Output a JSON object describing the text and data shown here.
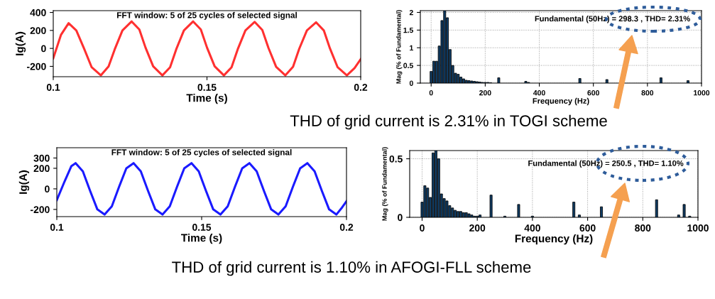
{
  "chart_data": [
    {
      "type": "line",
      "title": "FFT window: 5 of 25 cycles of selected signal",
      "xlabel": "Time (s)",
      "ylabel": "Ig(A)",
      "xlim": [
        0.1,
        0.2
      ],
      "ylim": [
        -315,
        420
      ],
      "xticks": [
        0.1,
        0.15,
        0.2
      ],
      "yticks": [
        -200,
        0,
        200,
        400
      ],
      "grid": false,
      "series": [
        {
          "color": "#ff3030",
          "x": [
            0.1,
            0.1025,
            0.105,
            0.1075,
            0.11,
            0.1125,
            0.1155,
            0.118,
            0.12,
            0.1225,
            0.1255,
            0.128,
            0.13,
            0.1325,
            0.1355,
            0.138,
            0.14,
            0.1425,
            0.1455,
            0.148,
            0.15,
            0.1525,
            0.1555,
            0.158,
            0.16,
            0.1625,
            0.1655,
            0.168,
            0.17,
            0.1725,
            0.1755,
            0.178,
            0.18,
            0.1825,
            0.1855,
            0.188,
            0.19,
            0.1925,
            0.1955,
            0.198,
            0.2
          ],
          "values": [
            -110,
            150,
            280,
            200,
            0,
            -210,
            -300,
            -200,
            -10,
            200,
            300,
            210,
            10,
            -200,
            -300,
            -210,
            -10,
            200,
            300,
            210,
            10,
            -200,
            -300,
            -210,
            -10,
            200,
            295,
            205,
            5,
            -205,
            -300,
            -205,
            -5,
            200,
            290,
            200,
            0,
            -210,
            -300,
            -220,
            -120
          ]
        }
      ]
    },
    {
      "type": "bar",
      "xlabel": "Frequency (Hz)",
      "ylabel": "Mag (% of Fundamental)",
      "xlim": [
        -40,
        1000
      ],
      "ylim": [
        0,
        2.05
      ],
      "xticks": [
        0,
        200,
        400,
        600,
        800,
        1000
      ],
      "yticks": [
        0,
        0.5,
        1,
        1.5,
        2
      ],
      "grid": true,
      "annotations": [
        "Fundamental (50Hz) = 298.3 , THD= 2.31%",
        "THD of grid current is 2.31% in TOGI scheme"
      ],
      "series": [
        {
          "color": "#0f3b63",
          "x": [
            0,
            10,
            20,
            30,
            40,
            50,
            60,
            70,
            80,
            90,
            100,
            110,
            120,
            130,
            140,
            150,
            160,
            170,
            180,
            190,
            200,
            210,
            220,
            250,
            350,
            360,
            550,
            650,
            850,
            950
          ],
          "values": [
            0.33,
            0.62,
            0.62,
            1.05,
            1.77,
            2.05,
            1.85,
            0.95,
            0.5,
            0.28,
            0.25,
            0.17,
            0.12,
            0.08,
            0.07,
            0.06,
            0.05,
            0.04,
            0.03,
            0.02,
            0.02,
            0.02,
            0.01,
            0.15,
            0.05,
            0.02,
            0.13,
            0.1,
            0.15,
            0.07
          ]
        }
      ]
    },
    {
      "type": "line",
      "title": "FFT window: 5 of 25 cycles of selected signal",
      "xlabel": "Time (s)",
      "ylabel": "Ig(A)",
      "xlim": [
        0.1,
        0.2
      ],
      "ylim": [
        -270,
        400
      ],
      "xticks": [
        0.1,
        0.15,
        0.2
      ],
      "yticks": [
        -200,
        0,
        200,
        300
      ],
      "grid": false,
      "series": [
        {
          "color": "#1a1aff",
          "x": [
            0.1,
            0.1025,
            0.105,
            0.1065,
            0.109,
            0.1115,
            0.114,
            0.1165,
            0.119,
            0.1215,
            0.124,
            0.1265,
            0.129,
            0.1315,
            0.134,
            0.1365,
            0.139,
            0.1415,
            0.144,
            0.1465,
            0.149,
            0.1515,
            0.154,
            0.1565,
            0.159,
            0.1615,
            0.164,
            0.1665,
            0.169,
            0.1715,
            0.174,
            0.1765,
            0.179,
            0.1815,
            0.184,
            0.1865,
            0.189,
            0.1915,
            0.194,
            0.1965,
            0.1985,
            0.2
          ],
          "values": [
            -110,
            60,
            220,
            250,
            170,
            -20,
            -200,
            -250,
            -170,
            20,
            200,
            250,
            170,
            -20,
            -200,
            -250,
            -170,
            20,
            200,
            250,
            170,
            -20,
            -200,
            -250,
            -170,
            20,
            200,
            250,
            170,
            -20,
            -200,
            -250,
            -170,
            20,
            200,
            250,
            170,
            -20,
            -200,
            -250,
            -180,
            -120
          ]
        }
      ]
    },
    {
      "type": "bar",
      "xlabel": "Frequency (Hz)",
      "ylabel": "Mag (% of Fundamental)",
      "xlim": [
        -45,
        1000
      ],
      "ylim": [
        0,
        0.57
      ],
      "xticks": [
        0,
        200,
        400,
        600,
        800,
        1000
      ],
      "yticks": [
        0,
        0.5
      ],
      "grid": true,
      "annotations": [
        "Fundamental (50Hz) = 250.5 , THD= 1.10%",
        "THD of grid current is 1.10% in AFOGI-FLL scheme"
      ],
      "series": [
        {
          "color": "#0f3b63",
          "x": [
            0,
            10,
            20,
            30,
            40,
            50,
            60,
            70,
            80,
            90,
            100,
            110,
            120,
            130,
            140,
            150,
            160,
            170,
            180,
            190,
            200,
            210,
            250,
            300,
            350,
            400,
            550,
            570,
            650,
            850,
            930,
            950,
            970
          ],
          "values": [
            0.13,
            0.27,
            0.25,
            0.17,
            0.55,
            0.57,
            0.5,
            0.2,
            0.16,
            0.14,
            0.1,
            0.08,
            0.06,
            0.05,
            0.05,
            0.04,
            0.04,
            0.03,
            0.02,
            0.01,
            0.01,
            0.02,
            0.19,
            0.01,
            0.11,
            0.01,
            0.13,
            0.02,
            0.09,
            0.15,
            0.02,
            0.11,
            0.01
          ]
        }
      ]
    }
  ]
}
